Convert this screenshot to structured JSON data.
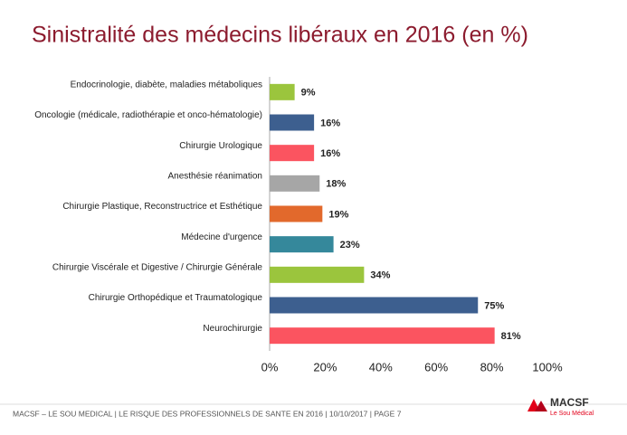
{
  "chart_data": {
    "type": "bar",
    "orientation": "horizontal",
    "title": "Sinistralité des médecins libéraux en 2016  (en %)",
    "categories": [
      "Endocrinologie, diabète, maladies métaboliques",
      "Oncologie (médicale, radiothérapie et onco-hématologie)",
      "Chirurgie Urologique",
      "Anesthésie réanimation",
      "Chirurgie Plastique, Reconstructrice et Esthétique",
      "Médecine d'urgence",
      "Chirurgie Viscérale et Digestive / Chirurgie Générale",
      "Chirurgie Orthopédique et Traumatologique",
      "Neurochirurgie"
    ],
    "values": [
      9,
      16,
      16,
      18,
      19,
      23,
      34,
      75,
      81
    ],
    "value_labels": [
      "9%",
      "16%",
      "16%",
      "18%",
      "19%",
      "23%",
      "34%",
      "75%",
      "81%"
    ],
    "colors": [
      "#9bc53d",
      "#3d5f8f",
      "#fb5460",
      "#a6a6a6",
      "#e2692c",
      "#35889b",
      "#9bc53d",
      "#3d5f8f",
      "#fb5460"
    ],
    "xlim": [
      0,
      100
    ],
    "xticks": [
      {
        "value": 0,
        "label": "0%"
      },
      {
        "value": 20,
        "label": "20%"
      },
      {
        "value": 40,
        "label": "40%"
      },
      {
        "value": 60,
        "label": "60%"
      },
      {
        "value": 80,
        "label": "80%"
      },
      {
        "value": 100,
        "label": "100%"
      }
    ],
    "grid": false
  },
  "footer": "MACSF – LE SOU MEDICAL | LE RISQUE DES PROFESSIONNELS DE SANTE EN 2016 | 10/10/2017 | PAGE 7",
  "logo": {
    "name": "MACSF",
    "subtitle": "Le Sou Médical"
  }
}
